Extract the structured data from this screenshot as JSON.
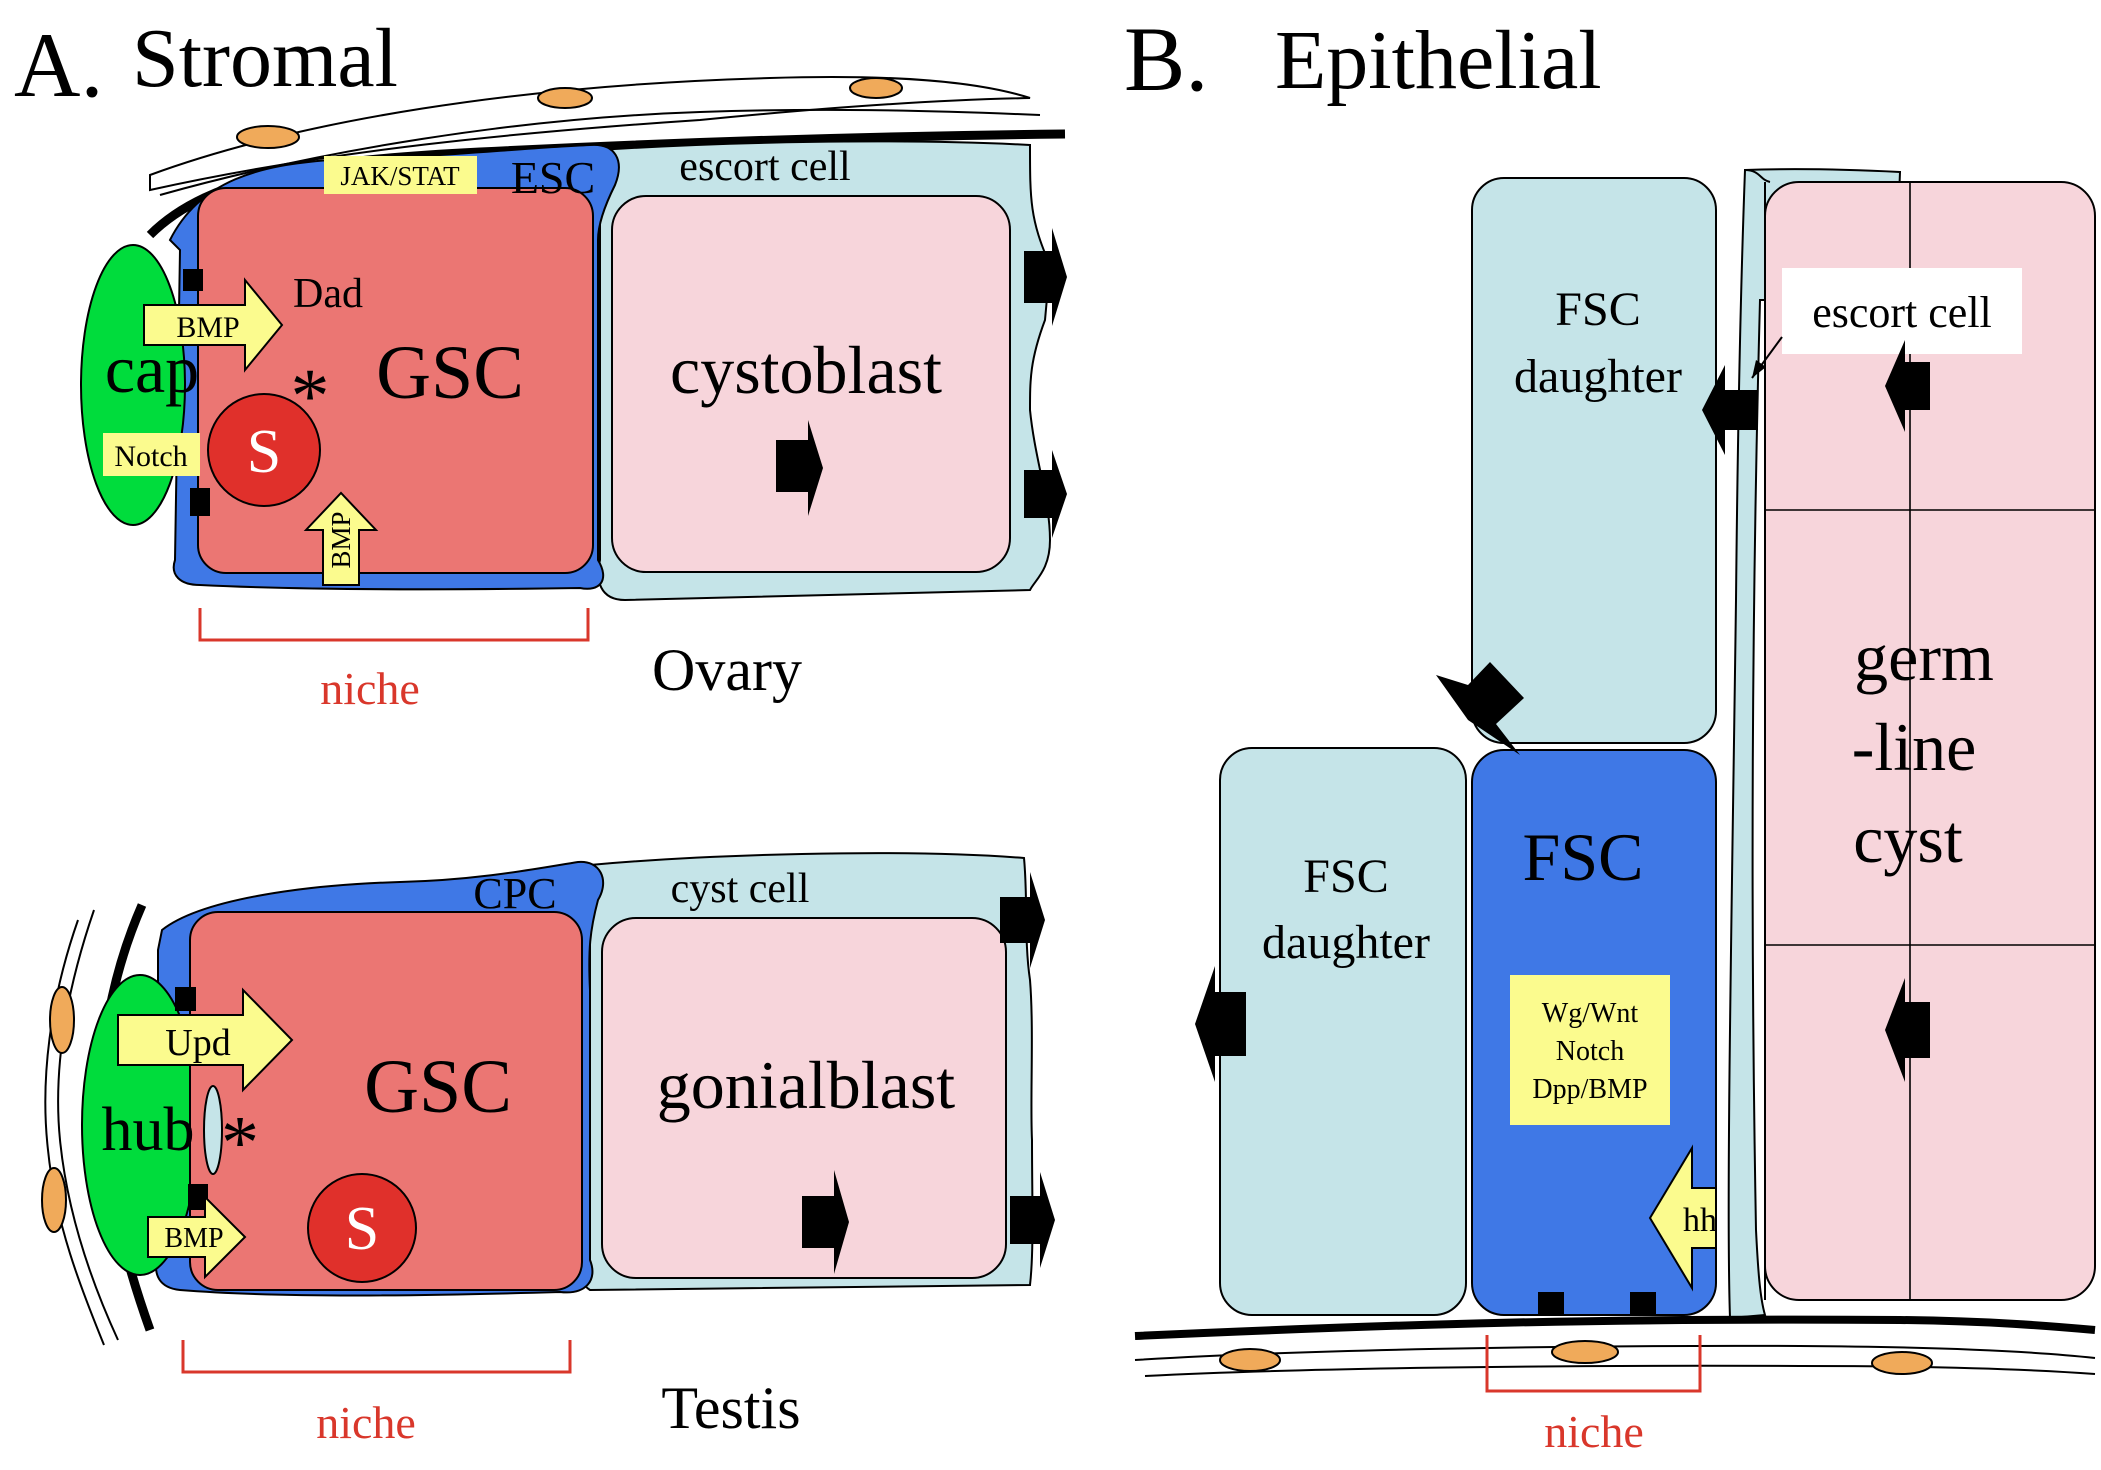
{
  "panel_a": {
    "letter": "A.",
    "title": "Stromal",
    "ovary": {
      "organ_label": "Ovary",
      "niche_label": "niche",
      "cap_label": "cap",
      "stem_label": "GSC",
      "daughter_label": "cystoblast",
      "escort_stem_label": "ESC",
      "escort_label": "escort cell",
      "pathway_label": "JAK/STAT",
      "signal_label": "BMP",
      "signal_label_2": "BMP",
      "target_label": "Dad",
      "notch_label": "Notch",
      "spectrosome_label": "S",
      "adhesion_mark": "*"
    },
    "testis": {
      "organ_label": "Testis",
      "niche_label": "niche",
      "hub_label": "hub",
      "stem_label": "GSC",
      "daughter_label": "gonialblast",
      "cyst_stem_label": "CPC",
      "cyst_label": "cyst cell",
      "signal_label": "Upd",
      "signal_label_2": "BMP",
      "spectrosome_label": "S",
      "adhesion_mark": "*"
    }
  },
  "panel_b": {
    "letter": "B.",
    "title": "Epithelial",
    "fsc_label": "FSC",
    "daughter_top_line1": "FSC",
    "daughter_top_line2": "daughter",
    "daughter_left_line1": "FSC",
    "daughter_left_line2": "daughter",
    "escort_label": "escort cell",
    "signals_line1": "Wg/Wnt",
    "signals_line2": "Notch",
    "signals_line3": "Dpp/BMP",
    "hh_label": "hh",
    "cyst_line1": "germ",
    "cyst_line2": "-line",
    "cyst_line3": "cyst",
    "niche_label": "niche"
  },
  "colors": {
    "niche_green": "#00dc3c",
    "stem_blue": "#3f78e6",
    "gsc_red": "#eb7673",
    "daughter_pink": "#f7d5db",
    "escort_cyan": "#c5e4e8",
    "signal_yellow": "#fbfb8e",
    "spectrosome_red": "#e0302b",
    "niche_bracket_red": "#d9372b",
    "sheath_orange": "#f0aa5a"
  }
}
